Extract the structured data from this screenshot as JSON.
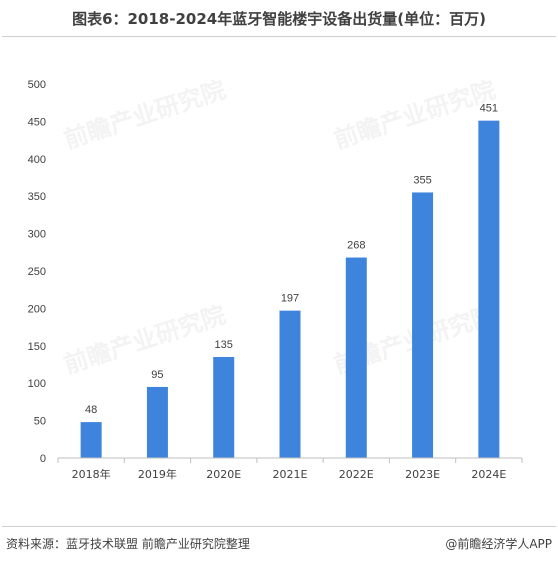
{
  "title": "图表6：2018-2024年蓝牙智能楼宇设备出货量(单位：百万)",
  "source": "资料来源：蓝牙技术联盟 前瞻产业研究院整理",
  "brand": "@前瞻经济学人APP",
  "watermark_text": "前瞻产业研究院",
  "colors": {
    "bar": "#3f84dc",
    "axis": "#bfbfbf",
    "text": "#404040"
  },
  "chart_data": {
    "type": "bar",
    "categories": [
      "2018年",
      "2019年",
      "2020E",
      "2021E",
      "2022E",
      "2023E",
      "2024E"
    ],
    "values": [
      48,
      95,
      135,
      197,
      268,
      355,
      451
    ],
    "data_labels": [
      "48",
      "95",
      "135",
      "197",
      "268",
      "355",
      "451"
    ],
    "yticks": [
      0,
      50,
      100,
      150,
      200,
      250,
      300,
      350,
      400,
      450,
      500
    ],
    "ylim": [
      0,
      500
    ],
    "grid": false,
    "legend": "none"
  }
}
